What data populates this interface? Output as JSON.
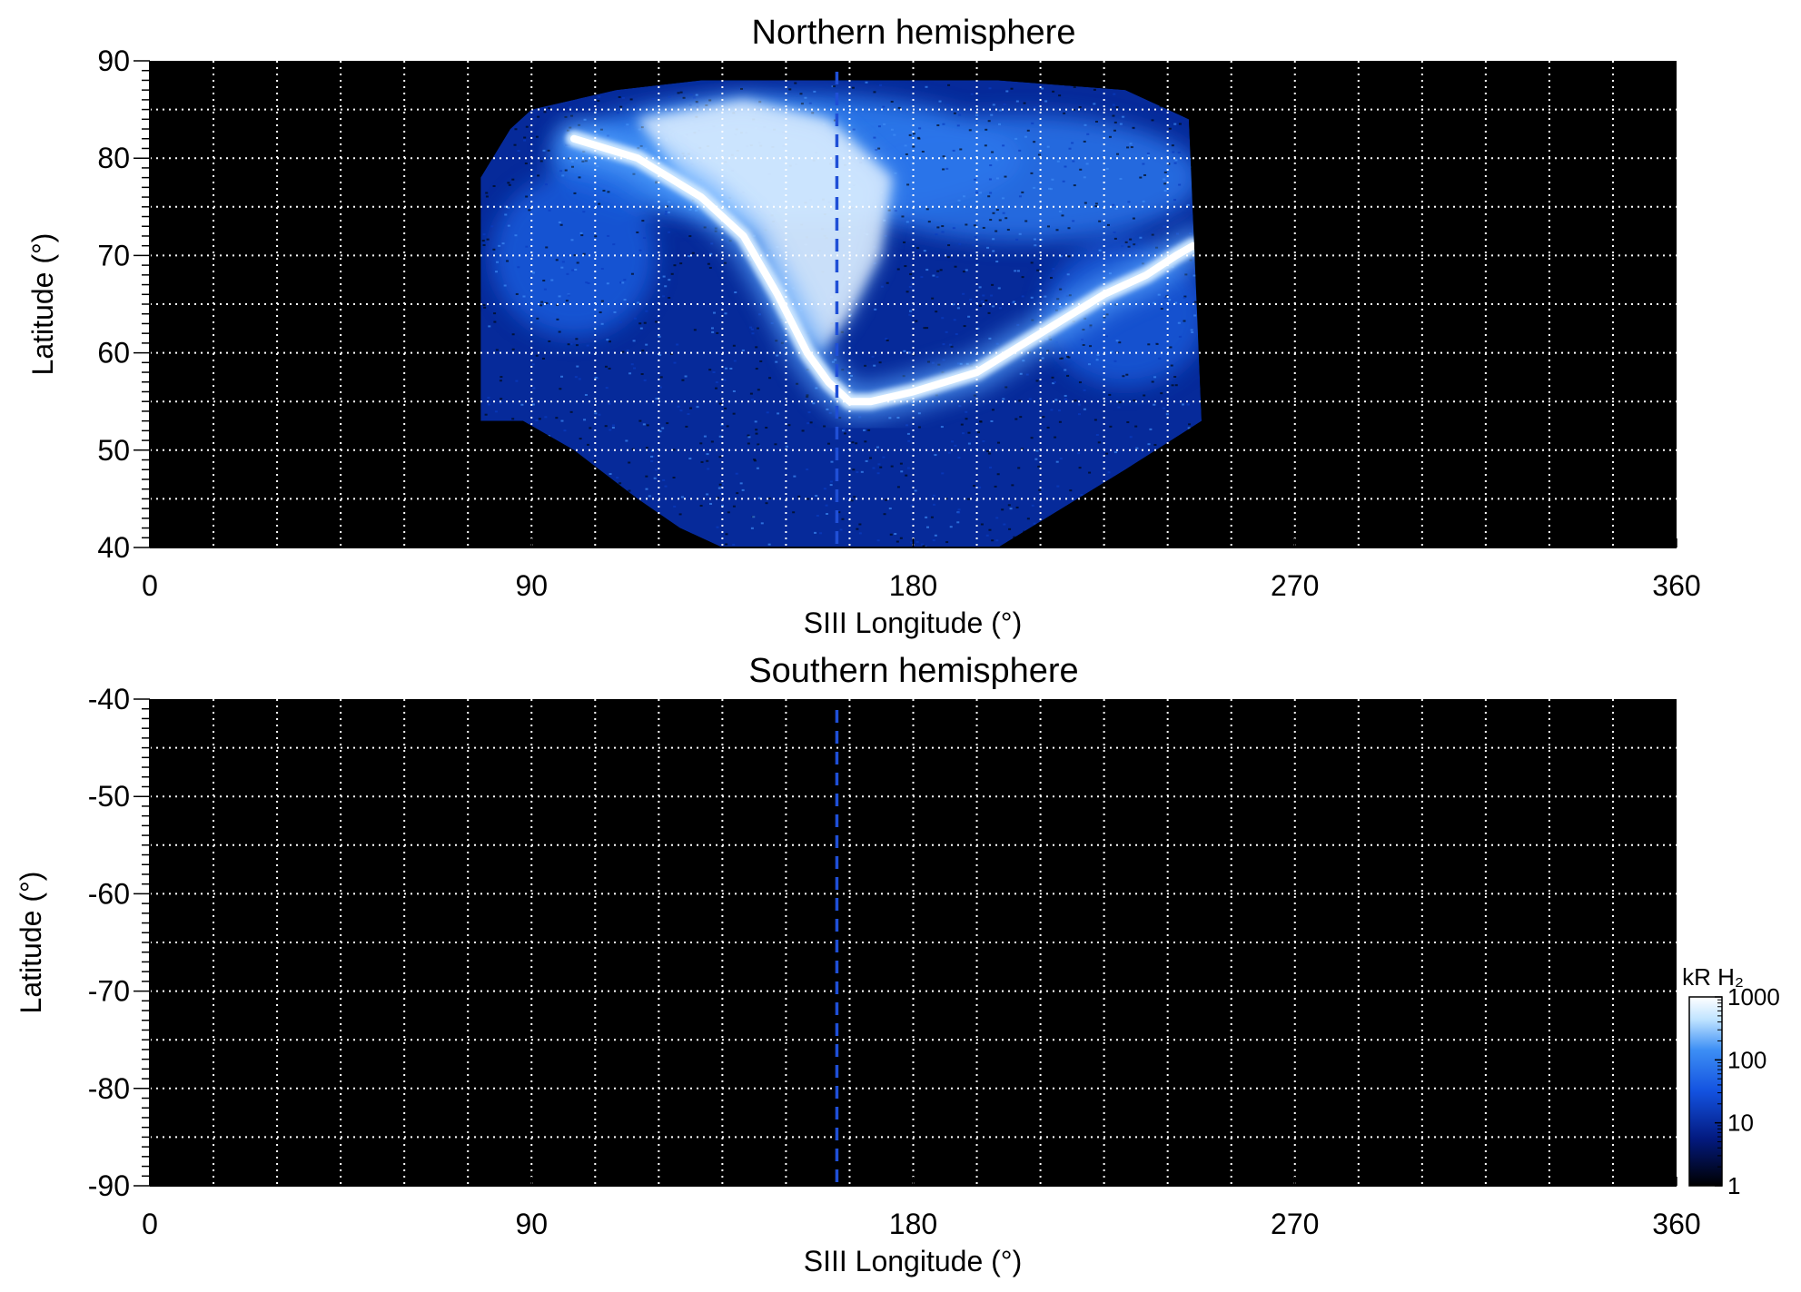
{
  "chart_data": [
    {
      "type": "heatmap",
      "title": "Northern hemisphere",
      "xlabel": "SIII Longitude (°)",
      "ylabel": "Latitude (°)",
      "xlim": [
        0,
        360
      ],
      "ylim": [
        40,
        90
      ],
      "xticks": [
        0,
        90,
        180,
        270,
        360
      ],
      "yticks": [
        40,
        50,
        60,
        70,
        80,
        90
      ],
      "background": "#000000",
      "grid": "dotted white, every 15° longitude and 5° latitude",
      "reference_line": {
        "longitude": 162,
        "style": "dashed",
        "color": "#1f4fd6"
      },
      "coverage_region": {
        "top_edge": [
          [
            78,
            78
          ],
          [
            85,
            83
          ],
          [
            90,
            85
          ],
          [
            110,
            87
          ],
          [
            130,
            88
          ],
          [
            160,
            88
          ],
          [
            200,
            88
          ],
          [
            230,
            87
          ],
          [
            245,
            84
          ]
        ],
        "bottom_edge": [
          [
            78,
            53
          ],
          [
            88,
            53
          ],
          [
            100,
            50
          ],
          [
            115,
            45
          ],
          [
            125,
            42
          ],
          [
            135,
            40
          ],
          [
            200,
            40
          ],
          [
            215,
            44
          ],
          [
            230,
            48
          ],
          [
            248,
            53
          ]
        ]
      },
      "main_oval": [
        [
          100,
          82
        ],
        [
          115,
          80
        ],
        [
          130,
          76
        ],
        [
          140,
          72
        ],
        [
          148,
          66
        ],
        [
          155,
          60
        ],
        [
          160,
          57
        ],
        [
          165,
          55
        ],
        [
          170,
          55
        ],
        [
          180,
          56
        ],
        [
          195,
          58
        ],
        [
          210,
          62
        ],
        [
          225,
          66
        ],
        [
          235,
          68
        ],
        [
          242,
          70
        ],
        [
          246,
          71
        ]
      ],
      "bright_region": [
        [
          115,
          84
        ],
        [
          140,
          86
        ],
        [
          160,
          84
        ],
        [
          175,
          78
        ],
        [
          172,
          70
        ],
        [
          165,
          64
        ],
        [
          158,
          60
        ],
        [
          150,
          64
        ],
        [
          143,
          72
        ],
        [
          125,
          78
        ]
      ]
    },
    {
      "type": "heatmap",
      "title": "Southern hemisphere",
      "xlabel": "SIII Longitude (°)",
      "ylabel": "Latitude (°)",
      "xlim": [
        0,
        360
      ],
      "ylim": [
        -90,
        -40
      ],
      "xticks": [
        0,
        90,
        180,
        270,
        360
      ],
      "yticks": [
        -40,
        -50,
        -60,
        -70,
        -80,
        -90
      ],
      "background": "#000000",
      "grid": "dotted white, every 15° longitude and 5° latitude",
      "reference_line": {
        "longitude": 162,
        "style": "dashed",
        "color": "#1f4fd6"
      }
    }
  ],
  "colorbar": {
    "label": "kR H₂",
    "scale": "log",
    "range": [
      1,
      1000
    ],
    "ticks": [
      "1000",
      "100",
      "10",
      "1"
    ],
    "colors": [
      "#000000",
      "#031a80",
      "#1352e0",
      "#3d8ff5",
      "#bfe3ff",
      "#ffffff"
    ]
  }
}
